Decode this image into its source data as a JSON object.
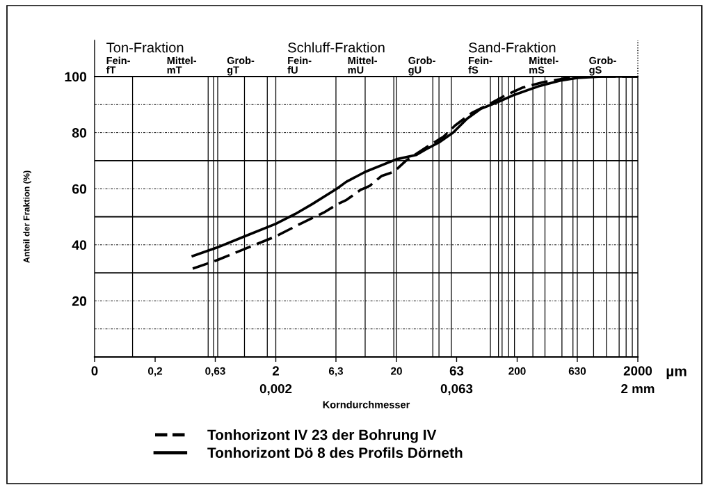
{
  "chart_data": {
    "type": "line",
    "xlabel": "Korndurchmesser",
    "ylabel": "Anteil der Fraktion (%)",
    "log": "x",
    "xlim": [
      0.063,
      2000
    ],
    "xticks": [
      {
        "value": 0.063,
        "label": "0"
      },
      {
        "value": 0.2,
        "label": "0,2"
      },
      {
        "value": 0.63,
        "label": "0,63"
      },
      2,
      {
        "value": 6.3,
        "label": "6,3"
      },
      20,
      63,
      200,
      630,
      2000
    ],
    "ylim": [
      0,
      100
    ],
    "yticks": [
      20,
      40,
      60,
      80,
      100
    ],
    "legend": "bottom",
    "series": [
      {
        "name": "Tonhorizont IV 23 der Bohrung IV",
        "color": "#000000",
        "line_style": "dashed",
        "x": [
          0.41,
          0.65,
          1.1,
          2.0,
          3.2,
          5.0,
          6.5,
          7.7,
          10,
          12,
          15,
          19,
          24,
          36,
          49,
          61,
          84,
          110,
          155,
          220,
          330,
          450,
          580,
          2000
        ],
        "values": [
          31.5,
          34.5,
          38.5,
          43,
          47.5,
          51.5,
          54.5,
          56,
          59.5,
          61,
          64.5,
          66,
          70,
          75,
          78.5,
          82.5,
          87,
          89.5,
          93,
          96,
          98,
          99,
          100,
          100
        ]
      },
      {
        "name": "Tonhorizont Dö 8 des Profils Dörneth",
        "color": "#000000",
        "line_style": "solid",
        "x": [
          0.41,
          0.65,
          1.1,
          2.0,
          2.9,
          4.0,
          6.4,
          7.7,
          11,
          20,
          29,
          35,
          45,
          59,
          77,
          100,
          140,
          190,
          300,
          450,
          630,
          1000,
          2000
        ],
        "values": [
          36,
          39,
          43,
          47.5,
          51,
          54.5,
          60,
          62.5,
          66,
          70.5,
          72,
          74,
          76.5,
          80,
          85,
          88.5,
          91,
          93.5,
          96.5,
          98.5,
          99.5,
          100,
          100
        ]
      }
    ],
    "ref_lines": [
      {
        "axis": "y",
        "value": 10,
        "line_style": "dotted"
      },
      {
        "axis": "y",
        "value": 20,
        "line_style": "dotted"
      },
      {
        "axis": "y",
        "value": 30,
        "line_style": "solid"
      },
      {
        "axis": "y",
        "value": 40,
        "line_style": "dotted"
      },
      {
        "axis": "y",
        "value": 50,
        "line_style": "solid"
      },
      {
        "axis": "y",
        "value": 60,
        "line_style": "dotted"
      },
      {
        "axis": "y",
        "value": 70,
        "line_style": "solid"
      },
      {
        "axis": "y",
        "value": 80,
        "line_style": "dotted"
      },
      {
        "axis": "y",
        "value": 90,
        "line_style": "dotted"
      },
      {
        "axis": "x",
        "value": 0.13,
        "line_style": "solid"
      },
      {
        "axis": "x",
        "value": 0.55,
        "line_style": "solid"
      },
      {
        "axis": "x",
        "value": 0.61,
        "line_style": "solid"
      },
      {
        "axis": "x",
        "value": 0.66,
        "line_style": "solid"
      },
      {
        "axis": "x",
        "value": 1.1,
        "line_style": "solid"
      },
      {
        "axis": "x",
        "value": 1.7,
        "line_style": "solid"
      },
      {
        "axis": "x",
        "value": 2,
        "line_style": "solid"
      },
      {
        "axis": "x",
        "value": 6.3,
        "line_style": "solid"
      },
      {
        "axis": "x",
        "value": 11,
        "line_style": "solid"
      },
      {
        "axis": "x",
        "value": 19,
        "line_style": "solid"
      },
      {
        "axis": "x",
        "value": 20,
        "line_style": "solid"
      },
      {
        "axis": "x",
        "value": 40,
        "line_style": "solid"
      },
      {
        "axis": "x",
        "value": 45,
        "line_style": "solid"
      },
      {
        "axis": "x",
        "value": 57,
        "line_style": "solid"
      },
      {
        "axis": "x",
        "value": 120,
        "line_style": "solid"
      },
      {
        "axis": "x",
        "value": 140,
        "line_style": "solid"
      },
      {
        "axis": "x",
        "value": 150,
        "line_style": "solid"
      },
      {
        "axis": "x",
        "value": 170,
        "line_style": "solid"
      },
      {
        "axis": "x",
        "value": 190,
        "line_style": "solid"
      },
      {
        "axis": "x",
        "value": 270,
        "line_style": "solid"
      },
      {
        "axis": "x",
        "value": 340,
        "line_style": "solid"
      },
      {
        "axis": "x",
        "value": 470,
        "line_style": "solid"
      },
      {
        "axis": "x",
        "value": 580,
        "line_style": "solid"
      },
      {
        "axis": "x",
        "value": 630,
        "line_style": "solid"
      },
      {
        "axis": "x",
        "value": 860,
        "line_style": "solid"
      },
      {
        "axis": "x",
        "value": 1100,
        "line_style": "solid"
      },
      {
        "axis": "x",
        "value": 1400,
        "line_style": "solid"
      },
      {
        "axis": "x",
        "value": 1600,
        "line_style": "solid"
      },
      {
        "axis": "x",
        "value": 1800,
        "line_style": "solid"
      }
    ],
    "annotations": [
      "Ton-Fraktion",
      "Fein-\nfT",
      "Mittel-\nmT",
      "Grob-\ngT",
      "Schluff-Fraktion",
      "Fein-\nfU",
      "Mittel-\nmU",
      "Grob-\ngU",
      "Sand-Fraktion",
      "Fein-\nfS",
      "Mittel-\nmS",
      "Grob-\ngS",
      "µm",
      "0,002",
      "0,063",
      "2 mm"
    ]
  }
}
